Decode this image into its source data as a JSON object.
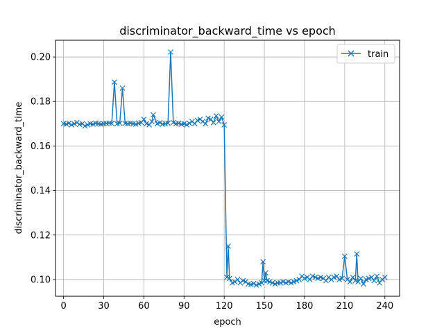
{
  "chart_data": {
    "type": "line",
    "title": "discriminator_backward_time vs epoch",
    "xlabel": "epoch",
    "ylabel": "discriminator_backward_time",
    "xlim": [
      -6,
      251
    ],
    "ylim": [
      0.0925,
      0.2075
    ],
    "xticks": [
      0,
      30,
      60,
      90,
      120,
      150,
      180,
      210,
      240
    ],
    "yticks": [
      0.1,
      0.12,
      0.14,
      0.16,
      0.18,
      0.2
    ],
    "grid": true,
    "legend_position": "top-right",
    "series": [
      {
        "name": "train",
        "color": "#1f77b4",
        "marker": "x",
        "x": [
          0,
          2,
          4,
          6,
          8,
          10,
          12,
          14,
          16,
          18,
          20,
          22,
          24,
          26,
          28,
          30,
          32,
          34,
          36,
          38,
          40,
          42,
          44,
          46,
          48,
          50,
          52,
          54,
          56,
          58,
          60,
          62,
          64,
          66,
          67,
          70,
          72,
          74,
          76,
          78,
          80,
          82,
          84,
          86,
          88,
          90,
          92,
          94,
          96,
          98,
          100,
          102,
          104,
          106,
          108,
          110,
          112,
          114,
          116,
          118,
          120,
          122,
          123,
          124,
          126,
          128,
          130,
          132,
          134,
          136,
          138,
          140,
          142,
          144,
          146,
          148,
          149,
          150,
          151,
          152,
          154,
          156,
          158,
          160,
          162,
          164,
          166,
          168,
          170,
          172,
          174,
          176,
          178,
          180,
          182,
          184,
          186,
          188,
          190,
          192,
          194,
          196,
          198,
          200,
          202,
          204,
          206,
          208,
          210,
          212,
          214,
          216,
          218,
          219,
          220,
          222,
          224,
          226,
          228,
          230,
          232,
          234,
          236,
          238,
          240
        ],
        "y": [
          0.17,
          0.1698,
          0.1702,
          0.1695,
          0.17,
          0.1705,
          0.1697,
          0.17,
          0.169,
          0.1695,
          0.17,
          0.1698,
          0.1702,
          0.17,
          0.1698,
          0.17,
          0.1702,
          0.1703,
          0.1701,
          0.1887,
          0.17,
          0.1702,
          0.186,
          0.1701,
          0.17,
          0.1703,
          0.17,
          0.1698,
          0.1702,
          0.1705,
          0.172,
          0.17,
          0.1695,
          0.171,
          0.174,
          0.17,
          0.1705,
          0.1698,
          0.17,
          0.1702,
          0.2022,
          0.1705,
          0.17,
          0.1702,
          0.1698,
          0.17,
          0.1695,
          0.1702,
          0.171,
          0.17,
          0.1715,
          0.172,
          0.171,
          0.17,
          0.1725,
          0.172,
          0.1705,
          0.1735,
          0.171,
          0.173,
          0.1695,
          0.101,
          0.115,
          0.1005,
          0.0985,
          0.099,
          0.1,
          0.0985,
          0.0995,
          0.099,
          0.098,
          0.0978,
          0.0982,
          0.0975,
          0.098,
          0.0985,
          0.108,
          0.0995,
          0.103,
          0.0995,
          0.099,
          0.0985,
          0.098,
          0.0985,
          0.0985,
          0.099,
          0.0985,
          0.099,
          0.0985,
          0.099,
          0.0995,
          0.1,
          0.1015,
          0.1005,
          0.101,
          0.1,
          0.1015,
          0.101,
          0.1005,
          0.101,
          0.1005,
          0.0995,
          0.101,
          0.1,
          0.101,
          0.1015,
          0.1,
          0.1005,
          0.1105,
          0.1,
          0.099,
          0.101,
          0.0995,
          0.1115,
          0.099,
          0.1005,
          0.098,
          0.1,
          0.1005,
          0.101,
          0.0995,
          0.1015,
          0.0985,
          0.1,
          0.101
        ]
      }
    ]
  }
}
